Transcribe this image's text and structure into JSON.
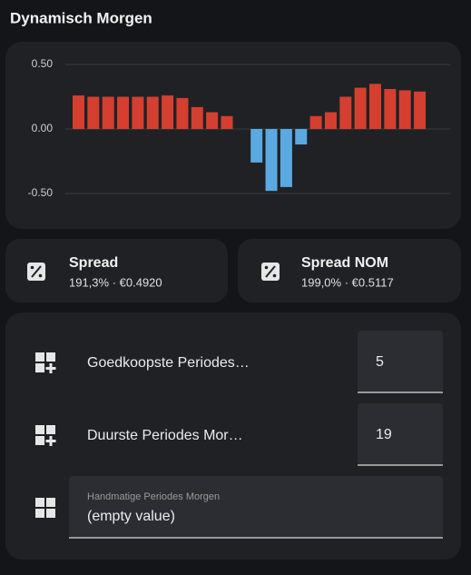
{
  "header": {
    "title": "Dynamisch Morgen"
  },
  "chart_data": {
    "type": "bar",
    "values": [
      0.26,
      0.25,
      0.25,
      0.25,
      0.25,
      0.25,
      0.26,
      0.24,
      0.17,
      0.13,
      0.1,
      0,
      -0.26,
      -0.48,
      -0.45,
      -0.12,
      0.1,
      0.13,
      0.25,
      0.32,
      0.35,
      0.31,
      0.3,
      0.29
    ],
    "color_positive": "#d43f2f",
    "color_negative": "#5aa9e0",
    "ylim": [
      -0.6,
      0.6
    ],
    "yticks": [
      {
        "value": 0.5,
        "label": "0.50"
      },
      {
        "value": 0,
        "label": "0.00"
      },
      {
        "value": -0.5,
        "label": "-0.50"
      }
    ],
    "grid": true
  },
  "tiles": [
    {
      "name": "Spread",
      "state": "191,3% · €0.4920"
    },
    {
      "name": "Spread NOM",
      "state": "199,0% · €0.5117"
    }
  ],
  "entities": [
    {
      "name": "Goedkoopste Periodes…",
      "value": "5"
    },
    {
      "name": "Duurste Periodes Mor…",
      "value": "19"
    },
    {
      "label": "Handmatige Periodes Morgen",
      "value": "(empty value)"
    }
  ]
}
